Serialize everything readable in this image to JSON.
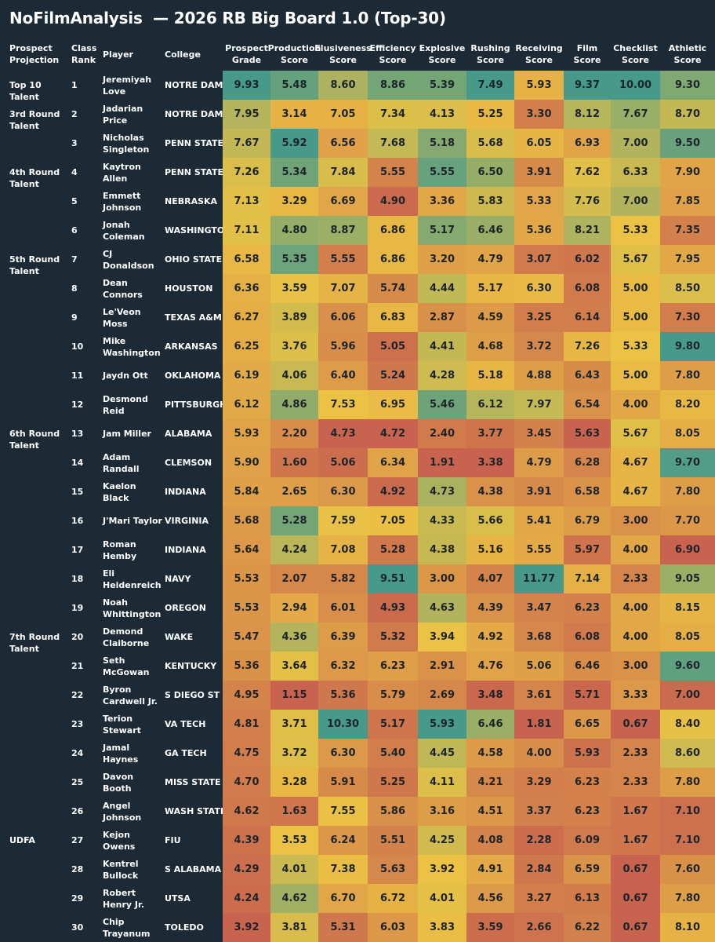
{
  "title": "NoFilmAnalysis  — 2026 RB Big Board 1.0 (Top-30)",
  "columns": {
    "projection": "Prospect Projection",
    "rank": "Class Rank",
    "player": "Player",
    "college": "College",
    "scores": [
      "Prospect Grade",
      "Production Score",
      "Elusiveness Score",
      "Efficiency Score",
      "Explosive Score",
      "Rushing Score",
      "Receiving Score",
      "Film Score",
      "Checklist Score",
      "Athletic Score"
    ]
  },
  "colors": {
    "background": "#1b2a34",
    "scale_low": "#c8634f",
    "scale_mid": "#ecc244",
    "scale_high": "#479a8a"
  },
  "projection_groups": [
    {
      "label": "Top 10 Talent",
      "first_rank": 1
    },
    {
      "label": "3rd Round Talent",
      "first_rank": 2
    },
    {
      "label": "4th Round Talent",
      "first_rank": 4
    },
    {
      "label": "5th Round Talent",
      "first_rank": 7
    },
    {
      "label": "6th Round Talent",
      "first_rank": 13
    },
    {
      "label": "7th Round Talent",
      "first_rank": 20
    },
    {
      "label": "UDFA",
      "first_rank": 27
    }
  ],
  "chart_data": {
    "type": "table",
    "title": "NoFilmAnalysis  — 2026 RB Big Board 1.0 (Top-30)",
    "rows": [
      {
        "rank": "1",
        "player": "Jeremiyah Love",
        "college": "NOTRE DAME",
        "scores": [
          "9.93",
          "5.48",
          "8.60",
          "8.86",
          "5.39",
          "7.49",
          "5.93",
          "9.37",
          "10.00",
          "9.30"
        ]
      },
      {
        "rank": "2",
        "player": "Jadarian Price",
        "college": "NOTRE DAME",
        "scores": [
          "7.95",
          "3.14",
          "7.05",
          "7.34",
          "4.13",
          "5.25",
          "3.30",
          "8.12",
          "7.67",
          "8.70"
        ]
      },
      {
        "rank": "3",
        "player": "Nicholas Singleton",
        "college": "PENN STATE",
        "scores": [
          "7.67",
          "5.92",
          "6.56",
          "7.68",
          "5.18",
          "5.68",
          "6.05",
          "6.93",
          "7.00",
          "9.50"
        ]
      },
      {
        "rank": "4",
        "player": "Kaytron Allen",
        "college": "PENN STATE",
        "scores": [
          "7.26",
          "5.34",
          "7.84",
          "5.55",
          "5.55",
          "6.50",
          "3.91",
          "7.62",
          "6.33",
          "7.90"
        ]
      },
      {
        "rank": "5",
        "player": "Emmett Johnson",
        "college": "NEBRASKA",
        "scores": [
          "7.13",
          "3.29",
          "6.69",
          "4.90",
          "3.36",
          "5.83",
          "5.33",
          "7.76",
          "7.00",
          "7.85"
        ]
      },
      {
        "rank": "6",
        "player": "Jonah Coleman",
        "college": "WASHINGTON",
        "scores": [
          "7.11",
          "4.80",
          "8.87",
          "6.86",
          "5.17",
          "6.46",
          "5.36",
          "8.21",
          "5.33",
          "7.35"
        ]
      },
      {
        "rank": "7",
        "player": "CJ Donaldson",
        "college": "OHIO STATE",
        "scores": [
          "6.58",
          "5.35",
          "5.55",
          "6.86",
          "3.20",
          "4.79",
          "3.07",
          "6.02",
          "5.67",
          "7.95"
        ]
      },
      {
        "rank": "8",
        "player": "Dean Connors",
        "college": "HOUSTON",
        "scores": [
          "6.36",
          "3.59",
          "7.07",
          "5.74",
          "4.44",
          "5.17",
          "6.30",
          "6.08",
          "5.00",
          "8.50"
        ]
      },
      {
        "rank": "9",
        "player": "Le'Veon Moss",
        "college": "TEXAS A&M",
        "scores": [
          "6.27",
          "3.89",
          "6.06",
          "6.83",
          "2.87",
          "4.59",
          "3.25",
          "6.14",
          "5.00",
          "7.30"
        ]
      },
      {
        "rank": "10",
        "player": "Mike Washington",
        "college": "ARKANSAS",
        "scores": [
          "6.25",
          "3.76",
          "5.96",
          "5.05",
          "4.41",
          "4.68",
          "3.72",
          "7.26",
          "5.33",
          "9.80"
        ]
      },
      {
        "rank": "11",
        "player": "Jaydn Ott",
        "college": "OKLAHOMA",
        "scores": [
          "6.19",
          "4.06",
          "6.40",
          "5.24",
          "4.28",
          "5.18",
          "4.88",
          "6.43",
          "5.00",
          "7.80"
        ]
      },
      {
        "rank": "12",
        "player": "Desmond Reid",
        "college": "PITTSBURGH",
        "scores": [
          "6.12",
          "4.86",
          "7.53",
          "6.95",
          "5.46",
          "6.12",
          "7.97",
          "6.54",
          "4.00",
          "8.20"
        ]
      },
      {
        "rank": "13",
        "player": "Jam Miller",
        "college": "ALABAMA",
        "scores": [
          "5.93",
          "2.20",
          "4.73",
          "4.72",
          "2.40",
          "3.77",
          "3.45",
          "5.63",
          "5.67",
          "8.05"
        ]
      },
      {
        "rank": "14",
        "player": "Adam Randall",
        "college": "CLEMSON",
        "scores": [
          "5.90",
          "1.60",
          "5.06",
          "6.34",
          "1.91",
          "3.38",
          "4.79",
          "6.28",
          "4.67",
          "9.70"
        ]
      },
      {
        "rank": "15",
        "player": "Kaelon Black",
        "college": "INDIANA",
        "scores": [
          "5.84",
          "2.65",
          "6.30",
          "4.92",
          "4.73",
          "4.38",
          "3.91",
          "6.58",
          "4.67",
          "7.80"
        ]
      },
      {
        "rank": "16",
        "player": "J'Mari Taylor",
        "college": "VIRGINIA",
        "scores": [
          "5.68",
          "5.28",
          "7.59",
          "7.05",
          "4.33",
          "5.66",
          "5.41",
          "6.79",
          "3.00",
          "7.70"
        ]
      },
      {
        "rank": "17",
        "player": "Roman Hemby",
        "college": "INDIANA",
        "scores": [
          "5.64",
          "4.24",
          "7.08",
          "5.28",
          "4.38",
          "5.16",
          "5.55",
          "5.97",
          "4.00",
          "6.90"
        ]
      },
      {
        "rank": "18",
        "player": "Eli Heidenreich",
        "college": "NAVY",
        "scores": [
          "5.53",
          "2.07",
          "5.82",
          "9.51",
          "3.00",
          "4.07",
          "11.77",
          "7.14",
          "2.33",
          "9.05"
        ]
      },
      {
        "rank": "19",
        "player": "Noah Whittington",
        "college": "OREGON",
        "scores": [
          "5.53",
          "2.94",
          "6.01",
          "4.93",
          "4.63",
          "4.39",
          "3.47",
          "6.23",
          "4.00",
          "8.15"
        ]
      },
      {
        "rank": "20",
        "player": "Demond Claiborne",
        "college": "WAKE",
        "scores": [
          "5.47",
          "4.36",
          "6.39",
          "5.32",
          "3.94",
          "4.92",
          "3.68",
          "6.08",
          "4.00",
          "8.05"
        ]
      },
      {
        "rank": "21",
        "player": "Seth McGowan",
        "college": "KENTUCKY",
        "scores": [
          "5.36",
          "3.64",
          "6.32",
          "6.23",
          "2.91",
          "4.76",
          "5.06",
          "6.46",
          "3.00",
          "9.60"
        ]
      },
      {
        "rank": "22",
        "player": "Byron Cardwell Jr.",
        "college": "S DIEGO ST",
        "scores": [
          "4.95",
          "1.15",
          "5.36",
          "5.79",
          "2.69",
          "3.48",
          "3.61",
          "5.71",
          "3.33",
          "7.00"
        ]
      },
      {
        "rank": "23",
        "player": "Terion Stewart",
        "college": "VA TECH",
        "scores": [
          "4.81",
          "3.71",
          "10.30",
          "5.17",
          "5.93",
          "6.46",
          "1.81",
          "6.65",
          "0.67",
          "8.40"
        ]
      },
      {
        "rank": "24",
        "player": "Jamal Haynes",
        "college": "GA TECH",
        "scores": [
          "4.75",
          "3.72",
          "6.30",
          "5.40",
          "4.45",
          "4.58",
          "4.00",
          "5.93",
          "2.33",
          "8.60"
        ]
      },
      {
        "rank": "25",
        "player": "Davon Booth",
        "college": "MISS STATE",
        "scores": [
          "4.70",
          "3.28",
          "5.91",
          "5.25",
          "4.11",
          "4.21",
          "3.29",
          "6.23",
          "2.33",
          "7.80"
        ]
      },
      {
        "rank": "26",
        "player": "Angel Johnson",
        "college": "WASH STATE",
        "scores": [
          "4.62",
          "1.63",
          "7.55",
          "5.86",
          "3.16",
          "4.51",
          "3.37",
          "6.23",
          "1.67",
          "7.10"
        ]
      },
      {
        "rank": "27",
        "player": "Kejon Owens",
        "college": "FIU",
        "scores": [
          "4.39",
          "3.53",
          "6.24",
          "5.51",
          "4.25",
          "4.08",
          "2.28",
          "6.09",
          "1.67",
          "7.10"
        ]
      },
      {
        "rank": "28",
        "player": "Kentrel Bullock",
        "college": "S ALABAMA",
        "scores": [
          "4.29",
          "4.01",
          "7.38",
          "5.63",
          "3.92",
          "4.91",
          "2.84",
          "6.59",
          "0.67",
          "7.60"
        ]
      },
      {
        "rank": "29",
        "player": "Robert Henry Jr.",
        "college": "UTSA",
        "scores": [
          "4.24",
          "4.62",
          "6.70",
          "6.72",
          "4.01",
          "4.56",
          "3.27",
          "6.13",
          "0.67",
          "7.80"
        ]
      },
      {
        "rank": "30",
        "player": "Chip Trayanum",
        "college": "TOLEDO",
        "scores": [
          "3.92",
          "3.81",
          "5.31",
          "6.03",
          "3.83",
          "3.59",
          "2.66",
          "6.22",
          "0.67",
          "8.10"
        ]
      }
    ]
  }
}
